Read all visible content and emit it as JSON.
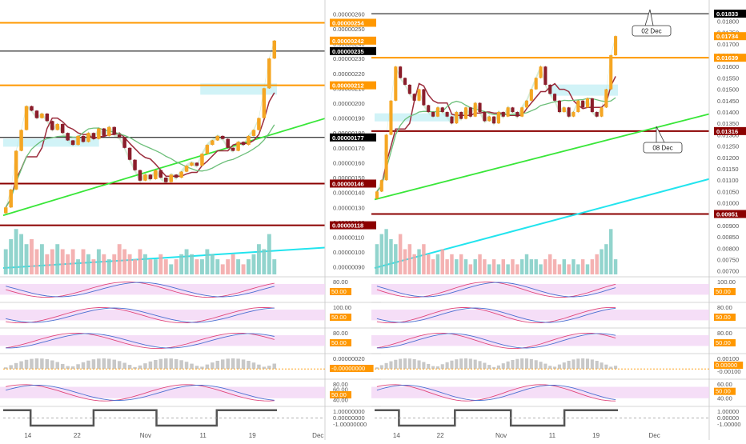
{
  "colors": {
    "up": "#f5a623",
    "down": "#8b1e2b",
    "vol_up": "#7fcdc4",
    "vol_down": "#f2a4a4",
    "bb_fill": "#c8e6c9",
    "cloud": "#b2ebf2",
    "osc_band": "#f3d6f5",
    "trend_green": "#39e639",
    "trend_cyan": "#22e4ee",
    "orange_line": "#ff9800",
    "darkred_line": "#8b0000",
    "kijun": "#9b2c3c",
    "ma": "#6dbf7a"
  },
  "x_tick_labels": [
    "14",
    "22",
    "Nov",
    "11",
    "19",
    "Dec"
  ],
  "chart_data": [
    {
      "type": "candlestick",
      "name": "left-panel",
      "price_axis": {
        "ticks": [
          "0.00000260",
          "0.00000250",
          "0.00000240",
          "0.00000230",
          "0.00000220",
          "0.00000210",
          "0.00000200",
          "0.00000190",
          "0.00000180",
          "0.00000170",
          "0.00000160",
          "0.00000150",
          "0.00000140",
          "0.00000130",
          "0.00000120",
          "0.00000110",
          "0.00000100",
          "0.00000090"
        ],
        "ylim": [
          8.5e-07,
          2.65e-06
        ]
      },
      "levels": [
        {
          "label": "0.00000254",
          "value": 2.54e-06,
          "color": "#ff9800",
          "style": "line"
        },
        {
          "label": "0.00000242",
          "value": 2.42e-06,
          "color": "#ff9800",
          "style": "none"
        },
        {
          "label": "0.00000235",
          "value": 2.35e-06,
          "color": "#000000",
          "style": "line"
        },
        {
          "label": "0.00000212",
          "value": 2.12e-06,
          "color": "#ff9800",
          "style": "line"
        },
        {
          "label": "0.00000177",
          "value": 1.77e-06,
          "color": "#000000",
          "style": "line"
        },
        {
          "label": "0.00000146",
          "value": 1.46e-06,
          "color": "#8b0000",
          "style": "line"
        },
        {
          "label": "0.00000118",
          "value": 1.18e-06,
          "color": "#8b0000",
          "style": "line"
        }
      ],
      "closes": [
        1.3e-06,
        1.42e-06,
        1.68e-06,
        1.82e-06,
        1.98e-06,
        1.95e-06,
        1.9e-06,
        1.93e-06,
        1.88e-06,
        1.82e-06,
        1.86e-06,
        1.8e-06,
        1.75e-06,
        1.72e-06,
        1.78e-06,
        1.74e-06,
        1.8e-06,
        1.76e-06,
        1.83e-06,
        1.78e-06,
        1.84e-06,
        1.79e-06,
        1.77e-06,
        1.7e-06,
        1.62e-06,
        1.55e-06,
        1.48e-06,
        1.52e-06,
        1.49e-06,
        1.55e-06,
        1.5e-06,
        1.47e-06,
        1.52e-06,
        1.5e-06,
        1.54e-06,
        1.58e-06,
        1.6e-06,
        1.58e-06,
        1.66e-06,
        1.72e-06,
        1.75e-06,
        1.78e-06,
        1.76e-06,
        1.7e-06,
        1.68e-06,
        1.74e-06,
        1.72e-06,
        1.78e-06,
        1.82e-06,
        1.9e-06,
        2.1e-06,
        2.3e-06,
        2.42e-06
      ],
      "volumes": [
        0.5,
        0.7,
        0.9,
        0.8,
        0.6,
        0.7,
        0.5,
        0.6,
        0.4,
        0.5,
        0.6,
        0.5,
        0.4,
        0.5,
        0.3,
        0.5,
        0.4,
        0.3,
        0.5,
        0.4,
        0.3,
        0.4,
        0.6,
        0.5,
        0.4,
        0.3,
        0.5,
        0.4,
        0.3,
        0.3,
        0.4,
        0.3,
        0.2,
        0.3,
        0.4,
        0.5,
        0.4,
        0.3,
        0.3,
        0.5,
        0.4,
        0.3,
        0.2,
        0.3,
        0.4,
        0.3,
        0.2,
        0.3,
        0.4,
        0.6,
        0.5,
        0.8,
        0.3
      ],
      "oscillators": [
        {
          "name": "stoch",
          "right_labels": [
            "80.00",
            "50.00"
          ],
          "highlight": "50.00"
        },
        {
          "name": "stoch-rsi",
          "right_labels": [
            "100.00",
            "50.00"
          ],
          "highlight": "50.00"
        },
        {
          "name": "stoch-slow",
          "right_labels": [
            "80.00",
            "50.00"
          ],
          "highlight": "50.00"
        },
        {
          "name": "macd",
          "right_labels": [
            "0.00000020",
            "-0.00000000"
          ],
          "highlight": "-0.00000000"
        },
        {
          "name": "rsi",
          "right_labels": [
            "80.00",
            "60.00",
            "50.00",
            "40.00"
          ],
          "highlight": "50.00"
        },
        {
          "name": "trend",
          "right_labels": [
            "1.00000000",
            "0.00000000",
            "-1.00000000"
          ],
          "highlight": ""
        }
      ]
    },
    {
      "type": "candlestick",
      "name": "right-panel",
      "price_axis": {
        "ticks": [
          "0.01800",
          "0.01750",
          "0.01700",
          "0.01650",
          "0.01600",
          "0.01550",
          "0.01500",
          "0.01450",
          "0.01400",
          "0.01350",
          "0.01300",
          "0.01250",
          "0.01200",
          "0.01150",
          "0.01100",
          "0.01050",
          "0.01000",
          "0.00950",
          "0.00900",
          "0.00850",
          "0.00800",
          "0.00750",
          "0.00700"
        ],
        "ylim": [
          0.00685,
          0.01865
        ]
      },
      "levels": [
        {
          "label": "0.01833",
          "value": 0.01833,
          "color": "#000000",
          "style": "line"
        },
        {
          "label": "0.01734",
          "value": 0.01734,
          "color": "#ff9800",
          "style": "none"
        },
        {
          "label": "0.01639",
          "value": 0.01639,
          "color": "#ff9800",
          "style": "line"
        },
        {
          "label": "0.01316",
          "value": 0.01316,
          "color": "#8b0000",
          "style": "line"
        },
        {
          "label": "0.00951",
          "value": 0.00951,
          "color": "#8b0000",
          "style": "line"
        }
      ],
      "callouts": [
        {
          "text": "02 Dec"
        },
        {
          "text": "08 Dec"
        }
      ],
      "closes": [
        0.0105,
        0.011,
        0.013,
        0.0145,
        0.016,
        0.0155,
        0.0152,
        0.0148,
        0.0145,
        0.015,
        0.0143,
        0.014,
        0.0138,
        0.0142,
        0.014,
        0.0138,
        0.0135,
        0.014,
        0.0137,
        0.0142,
        0.0138,
        0.0144,
        0.014,
        0.0136,
        0.0138,
        0.0135,
        0.014,
        0.0138,
        0.0142,
        0.014,
        0.0138,
        0.0142,
        0.0145,
        0.015,
        0.0155,
        0.016,
        0.0152,
        0.0148,
        0.0145,
        0.014,
        0.0142,
        0.0138,
        0.014,
        0.0145,
        0.0142,
        0.0146,
        0.014,
        0.0138,
        0.0142,
        0.015,
        0.0165,
        0.01734
      ],
      "volumes": [
        0.6,
        0.8,
        0.9,
        0.7,
        0.6,
        0.8,
        0.5,
        0.6,
        0.4,
        0.5,
        0.6,
        0.4,
        0.3,
        0.4,
        0.5,
        0.3,
        0.4,
        0.3,
        0.4,
        0.3,
        0.2,
        0.3,
        0.4,
        0.3,
        0.2,
        0.3,
        0.2,
        0.3,
        0.2,
        0.3,
        0.2,
        0.3,
        0.4,
        0.3,
        0.3,
        0.2,
        0.3,
        0.4,
        0.3,
        0.2,
        0.3,
        0.2,
        0.3,
        0.2,
        0.3,
        0.2,
        0.3,
        0.4,
        0.5,
        0.6,
        0.9,
        0.3
      ],
      "oscillators": [
        {
          "name": "stoch",
          "right_labels": [
            "100.00",
            "50.00"
          ],
          "highlight": "50.00"
        },
        {
          "name": "stoch-rsi",
          "right_labels": [
            "80.00",
            "50.00"
          ],
          "highlight": "50.00"
        },
        {
          "name": "stoch-slow",
          "right_labels": [
            "80.00",
            "50.00"
          ],
          "highlight": "50.00"
        },
        {
          "name": "macd",
          "right_labels": [
            "0.00100",
            "0.00000",
            "-0.00100"
          ],
          "highlight": "0.00000"
        },
        {
          "name": "rsi",
          "right_labels": [
            "60.00",
            "50.00",
            "40.00"
          ],
          "highlight": "50.00"
        },
        {
          "name": "trend",
          "right_labels": [
            "1.00000",
            "0.00000",
            "-1.00000"
          ],
          "highlight": ""
        }
      ]
    }
  ]
}
